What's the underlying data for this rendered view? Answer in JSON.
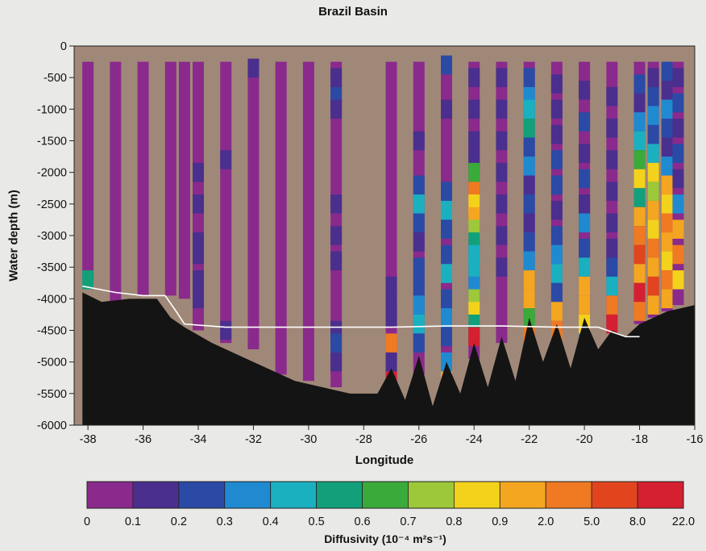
{
  "chart_data": {
    "type": "heatmap",
    "title": "Brazil Basin",
    "xlabel": "Longitude",
    "ylabel": "Water depth (m)",
    "xlim": [
      -38.5,
      -16
    ],
    "ylim": [
      -6000,
      0
    ],
    "x_ticks": [
      -38,
      -36,
      -34,
      -32,
      -30,
      -28,
      -26,
      -24,
      -22,
      -20,
      -18,
      -16
    ],
    "y_ticks": [
      0,
      -500,
      -1000,
      -1500,
      -2000,
      -2500,
      -3000,
      -3500,
      -4000,
      -4500,
      -5000,
      -5500,
      -6000
    ],
    "colorbar": {
      "label": "Diffusivity (10⁻⁴ m²s⁻¹)",
      "ticks": [
        "0",
        "0.1",
        "0.2",
        "0.3",
        "0.4",
        "0.5",
        "0.6",
        "0.7",
        "0.8",
        "0.9",
        "2.0",
        "5.0",
        "8.0",
        "22.0"
      ],
      "colors": [
        "#8a2a8c",
        "#4a2f8e",
        "#2a4aa6",
        "#1f8ad0",
        "#1ab0c0",
        "#12a07a",
        "#3aaa3a",
        "#9cc83a",
        "#f3d21c",
        "#f4a620",
        "#ef7a22",
        "#e2451e",
        "#d42030"
      ]
    },
    "background_color": "#a08878",
    "seafloor_color": "#141414",
    "profiles": [
      {
        "lon": -38.0,
        "bottom": -3700,
        "cells": [
          [
            -3700,
            5
          ]
        ]
      },
      {
        "lon": -37.0,
        "bottom": -4050,
        "cells": []
      },
      {
        "lon": -36.0,
        "bottom": -3950,
        "cells": []
      },
      {
        "lon": -35.0,
        "bottom": -3950,
        "cells": []
      },
      {
        "lon": -34.5,
        "bottom": -4000,
        "cells": []
      },
      {
        "lon": -34.0,
        "bottom": -4500,
        "cells": [
          [
            -2000,
            1
          ],
          [
            -2500,
            1
          ],
          [
            -3100,
            1
          ],
          [
            -3300,
            1
          ],
          [
            -3700,
            1
          ],
          [
            -4000,
            1
          ]
        ]
      },
      {
        "lon": -33.0,
        "bottom": -4700,
        "cells": [
          [
            -1800,
            1
          ],
          [
            -4500,
            1
          ]
        ]
      },
      {
        "lon": -32.0,
        "bottom": -4800,
        "cells": [
          [
            -350,
            1
          ]
        ]
      },
      {
        "lon": -31.0,
        "bottom": -5200,
        "cells": []
      },
      {
        "lon": -30.0,
        "bottom": -5300,
        "cells": []
      },
      {
        "lon": -29.0,
        "bottom": -5400,
        "cells": [
          [
            -500,
            1
          ],
          [
            -800,
            2
          ],
          [
            -1000,
            1
          ],
          [
            -2500,
            1
          ],
          [
            -3000,
            1
          ],
          [
            -3400,
            1
          ],
          [
            -4500,
            1
          ],
          [
            -4700,
            2
          ],
          [
            -5000,
            1
          ]
        ]
      },
      {
        "lon": -27.0,
        "bottom": -5300,
        "cells": [
          [
            -3800,
            1
          ],
          [
            -4100,
            1
          ],
          [
            -4300,
            1
          ],
          [
            -4700,
            10
          ],
          [
            -5000,
            1
          ],
          [
            -5300,
            12
          ]
        ]
      },
      {
        "lon": -26.0,
        "bottom": -5200,
        "cells": [
          [
            -1500,
            1
          ],
          [
            -2200,
            2
          ],
          [
            -2500,
            4
          ],
          [
            -2800,
            2
          ],
          [
            -3100,
            1
          ],
          [
            -3500,
            2
          ],
          [
            -3800,
            2
          ],
          [
            -4100,
            3
          ],
          [
            -4400,
            4
          ],
          [
            -4700,
            2
          ]
        ]
      },
      {
        "lon": -25.0,
        "bottom": -5500,
        "cells": [
          [
            -300,
            2
          ],
          [
            -1000,
            1
          ],
          [
            -2300,
            2
          ],
          [
            -2600,
            4
          ],
          [
            -2900,
            2
          ],
          [
            -3300,
            2
          ],
          [
            -3600,
            4
          ],
          [
            -4000,
            2
          ],
          [
            -4300,
            3
          ],
          [
            -4600,
            2
          ],
          [
            -5000,
            3
          ],
          [
            -5300,
            9
          ]
        ]
      },
      {
        "lon": -24.0,
        "bottom": -4950,
        "cells": [
          [
            -500,
            1
          ],
          [
            -1000,
            1
          ],
          [
            -1500,
            1
          ],
          [
            -1800,
            1
          ],
          [
            -2000,
            6
          ],
          [
            -2300,
            10
          ],
          [
            -2500,
            8
          ],
          [
            -2700,
            9
          ],
          [
            -2900,
            7
          ],
          [
            -3100,
            5
          ],
          [
            -3300,
            4
          ],
          [
            -3500,
            4
          ],
          [
            -3800,
            3
          ],
          [
            -4000,
            7
          ],
          [
            -4200,
            8
          ],
          [
            -4400,
            5
          ],
          [
            -4600,
            12
          ]
        ]
      },
      {
        "lon": -23.0,
        "bottom": -4700,
        "cells": [
          [
            -500,
            1
          ],
          [
            -1000,
            1
          ],
          [
            -1500,
            1
          ],
          [
            -2000,
            1
          ],
          [
            -2500,
            1
          ],
          [
            -3000,
            1
          ],
          [
            -3500,
            1
          ]
        ]
      },
      {
        "lon": -22.0,
        "bottom": -4300,
        "cells": [
          [
            -500,
            2
          ],
          [
            -800,
            3
          ],
          [
            -1000,
            4
          ],
          [
            -1300,
            5
          ],
          [
            -1600,
            2
          ],
          [
            -1900,
            3
          ],
          [
            -2200,
            1
          ],
          [
            -2500,
            2
          ],
          [
            -2800,
            1
          ],
          [
            -3100,
            2
          ],
          [
            -3400,
            3
          ],
          [
            -3700,
            9
          ],
          [
            -4000,
            9
          ],
          [
            -4300,
            6
          ],
          [
            -4600,
            10
          ],
          [
            -5000,
            9
          ]
        ]
      },
      {
        "lon": -21.0,
        "bottom": -4500,
        "cells": [
          [
            -600,
            1
          ],
          [
            -1000,
            1
          ],
          [
            -1400,
            1
          ],
          [
            -1800,
            2
          ],
          [
            -2200,
            2
          ],
          [
            -2600,
            1
          ],
          [
            -3000,
            2
          ],
          [
            -3300,
            3
          ],
          [
            -3600,
            4
          ],
          [
            -3900,
            2
          ],
          [
            -4200,
            9
          ],
          [
            -4500,
            10
          ]
        ]
      },
      {
        "lon": -20.0,
        "bottom": -4350,
        "cells": [
          [
            -700,
            1
          ],
          [
            -1200,
            2
          ],
          [
            -1700,
            1
          ],
          [
            -2100,
            2
          ],
          [
            -2500,
            1
          ],
          [
            -2800,
            3
          ],
          [
            -3200,
            2
          ],
          [
            -3500,
            4
          ],
          [
            -3800,
            9
          ],
          [
            -4100,
            9
          ],
          [
            -4400,
            8
          ],
          [
            -4700,
            3
          ]
        ]
      },
      {
        "lon": -19.0,
        "bottom": -4450,
        "cells": [
          [
            -800,
            1
          ],
          [
            -1300,
            1
          ],
          [
            -1800,
            1
          ],
          [
            -2300,
            1
          ],
          [
            -2800,
            1
          ],
          [
            -3200,
            1
          ],
          [
            -3500,
            2
          ],
          [
            -3800,
            4
          ],
          [
            -4100,
            10
          ],
          [
            -4400,
            12
          ]
        ]
      },
      {
        "lon": -18.0,
        "bottom": -4400,
        "cells": [
          [
            -600,
            2
          ],
          [
            -900,
            1
          ],
          [
            -1200,
            3
          ],
          [
            -1500,
            4
          ],
          [
            -1800,
            6
          ],
          [
            -2100,
            8
          ],
          [
            -2400,
            5
          ],
          [
            -2700,
            9
          ],
          [
            -3000,
            10
          ],
          [
            -3300,
            11
          ],
          [
            -3600,
            9
          ],
          [
            -3900,
            12
          ],
          [
            -4200,
            10
          ]
        ]
      },
      {
        "lon": -17.5,
        "bottom": -4300,
        "cells": [
          [
            -500,
            1
          ],
          [
            -800,
            2
          ],
          [
            -1100,
            3
          ],
          [
            -1400,
            2
          ],
          [
            -1700,
            4
          ],
          [
            -2000,
            8
          ],
          [
            -2300,
            7
          ],
          [
            -2600,
            9
          ],
          [
            -2900,
            8
          ],
          [
            -3200,
            10
          ],
          [
            -3500,
            9
          ],
          [
            -3800,
            11
          ],
          [
            -4100,
            9
          ]
        ]
      },
      {
        "lon": -17.0,
        "bottom": -4200,
        "cells": [
          [
            -400,
            2
          ],
          [
            -700,
            1
          ],
          [
            -1000,
            3
          ],
          [
            -1300,
            2
          ],
          [
            -1600,
            1
          ],
          [
            -1900,
            3
          ],
          [
            -2200,
            9
          ],
          [
            -2500,
            8
          ],
          [
            -2800,
            10
          ],
          [
            -3100,
            9
          ],
          [
            -3400,
            8
          ],
          [
            -3700,
            10
          ],
          [
            -4000,
            9
          ]
        ]
      },
      {
        "lon": -16.6,
        "bottom": -4100,
        "cells": [
          [
            -500,
            1
          ],
          [
            -900,
            2
          ],
          [
            -1300,
            1
          ],
          [
            -1700,
            2
          ],
          [
            -2100,
            1
          ],
          [
            -2500,
            3
          ],
          [
            -2900,
            9
          ],
          [
            -3300,
            10
          ],
          [
            -3700,
            8
          ]
        ]
      }
    ],
    "seafloor_line": [
      [
        -38.2,
        -3900
      ],
      [
        -37.5,
        -4050
      ],
      [
        -36.5,
        -4000
      ],
      [
        -35.5,
        -4000
      ],
      [
        -35.0,
        -4300
      ],
      [
        -34.5,
        -4450
      ],
      [
        -33.5,
        -4700
      ],
      [
        -32.5,
        -4900
      ],
      [
        -31.5,
        -5100
      ],
      [
        -30.5,
        -5300
      ],
      [
        -29.5,
        -5400
      ],
      [
        -28.5,
        -5500
      ],
      [
        -27.5,
        -5500
      ],
      [
        -27.0,
        -5100
      ],
      [
        -26.5,
        -5600
      ],
      [
        -26.0,
        -4900
      ],
      [
        -25.5,
        -5700
      ],
      [
        -25.0,
        -5000
      ],
      [
        -24.5,
        -5500
      ],
      [
        -24.0,
        -4700
      ],
      [
        -23.5,
        -5400
      ],
      [
        -23.0,
        -4600
      ],
      [
        -22.5,
        -5300
      ],
      [
        -22.0,
        -4300
      ],
      [
        -21.5,
        -5000
      ],
      [
        -21.0,
        -4400
      ],
      [
        -20.5,
        -5100
      ],
      [
        -20.0,
        -4300
      ],
      [
        -19.5,
        -4800
      ],
      [
        -19.0,
        -4500
      ],
      [
        -18.5,
        -4600
      ],
      [
        -18.0,
        -4400
      ],
      [
        -17.5,
        -4300
      ],
      [
        -17.0,
        -4200
      ],
      [
        -16.0,
        -4100
      ]
    ],
    "white_line": [
      [
        -38.2,
        -3800
      ],
      [
        -37.0,
        -3900
      ],
      [
        -36.0,
        -3950
      ],
      [
        -35.2,
        -3950
      ],
      [
        -34.8,
        -4200
      ],
      [
        -34.5,
        -4400
      ],
      [
        -33.0,
        -4450
      ],
      [
        -31.0,
        -4450
      ],
      [
        -29.0,
        -4450
      ],
      [
        -27.0,
        -4450
      ],
      [
        -25.0,
        -4430
      ],
      [
        -23.0,
        -4430
      ],
      [
        -21.0,
        -4450
      ],
      [
        -19.5,
        -4450
      ],
      [
        -18.5,
        -4600
      ],
      [
        -18.0,
        -4600
      ]
    ]
  }
}
